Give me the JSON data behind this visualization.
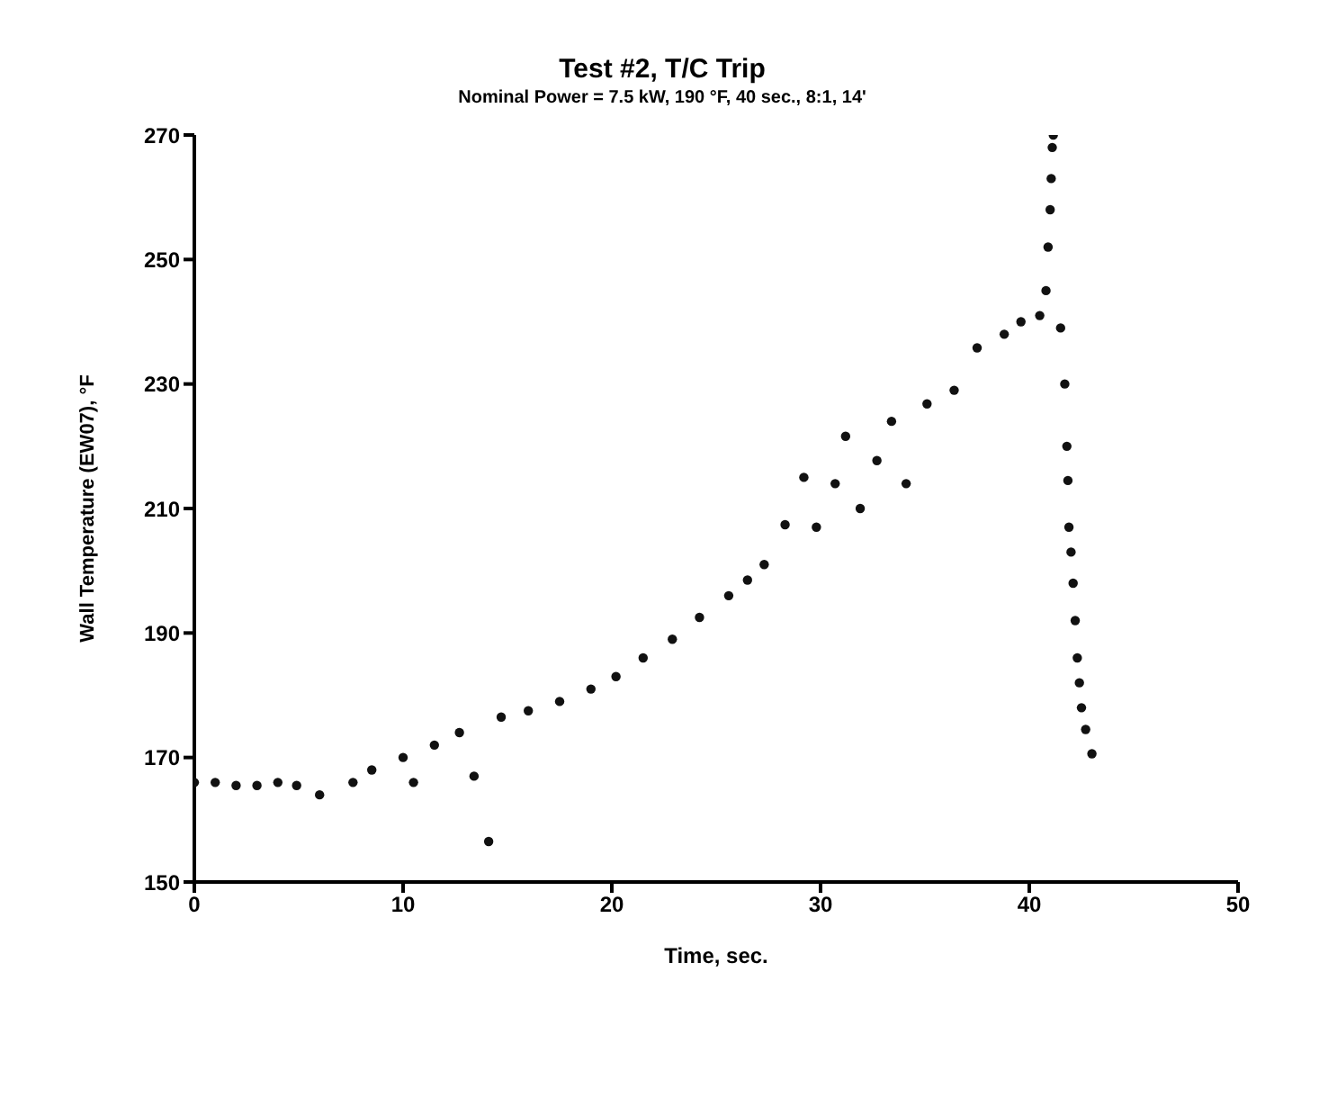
{
  "chart_data": {
    "type": "scatter",
    "title": "Test #2, T/C Trip",
    "subtitle": "Nominal Power = 7.5 kW, 190 °F, 40 sec., 8:1, 14'",
    "xlabel": "Time, sec.",
    "ylabel": "Wall Temperature (EW07), °F",
    "xlim": [
      0,
      50
    ],
    "xticks": [
      0,
      10,
      20,
      30,
      40,
      50
    ],
    "ylim": [
      150,
      270
    ],
    "yticks": [
      150,
      170,
      190,
      210,
      230,
      250,
      270
    ],
    "grid": false,
    "legend": false,
    "marker": "circle",
    "series": [
      {
        "color": "#111111",
        "x": [
          0,
          1,
          2,
          3,
          4,
          4.9,
          6,
          7.6,
          8.5,
          10,
          10.5,
          11.5,
          12.7,
          13.4,
          14.1,
          14.7,
          16,
          17.5,
          19,
          20.2,
          21.5,
          22.9,
          24.2,
          25.6,
          26.5,
          27.3,
          28.3,
          29.2,
          29.8,
          30.7,
          31.2,
          31.9,
          32.7,
          33.4,
          34.1,
          35.1,
          36.4,
          37.5,
          38.8,
          39.6,
          40.5,
          40.8,
          40.9,
          41.0,
          41.05,
          41.1,
          41.15,
          41.5,
          41.7,
          41.8,
          41.85,
          41.9,
          42.0,
          42.1,
          42.2,
          42.3,
          42.4,
          42.5,
          42.7,
          43.0
        ],
        "values": [
          166,
          166,
          165.5,
          165.5,
          166,
          165.5,
          164,
          166,
          168,
          170,
          166,
          172,
          174,
          167,
          156.5,
          176.5,
          177.5,
          179,
          181,
          183,
          186,
          189,
          192.5,
          196,
          198.5,
          201,
          207.4,
          215,
          207,
          214,
          221.6,
          210,
          217.7,
          224,
          214,
          226.8,
          229,
          235.8,
          238,
          240,
          241,
          245,
          252,
          258,
          263,
          268,
          270,
          239,
          230,
          220,
          214.5,
          207,
          203,
          198,
          192,
          186,
          182,
          178,
          174.5,
          170.6
        ]
      }
    ]
  }
}
